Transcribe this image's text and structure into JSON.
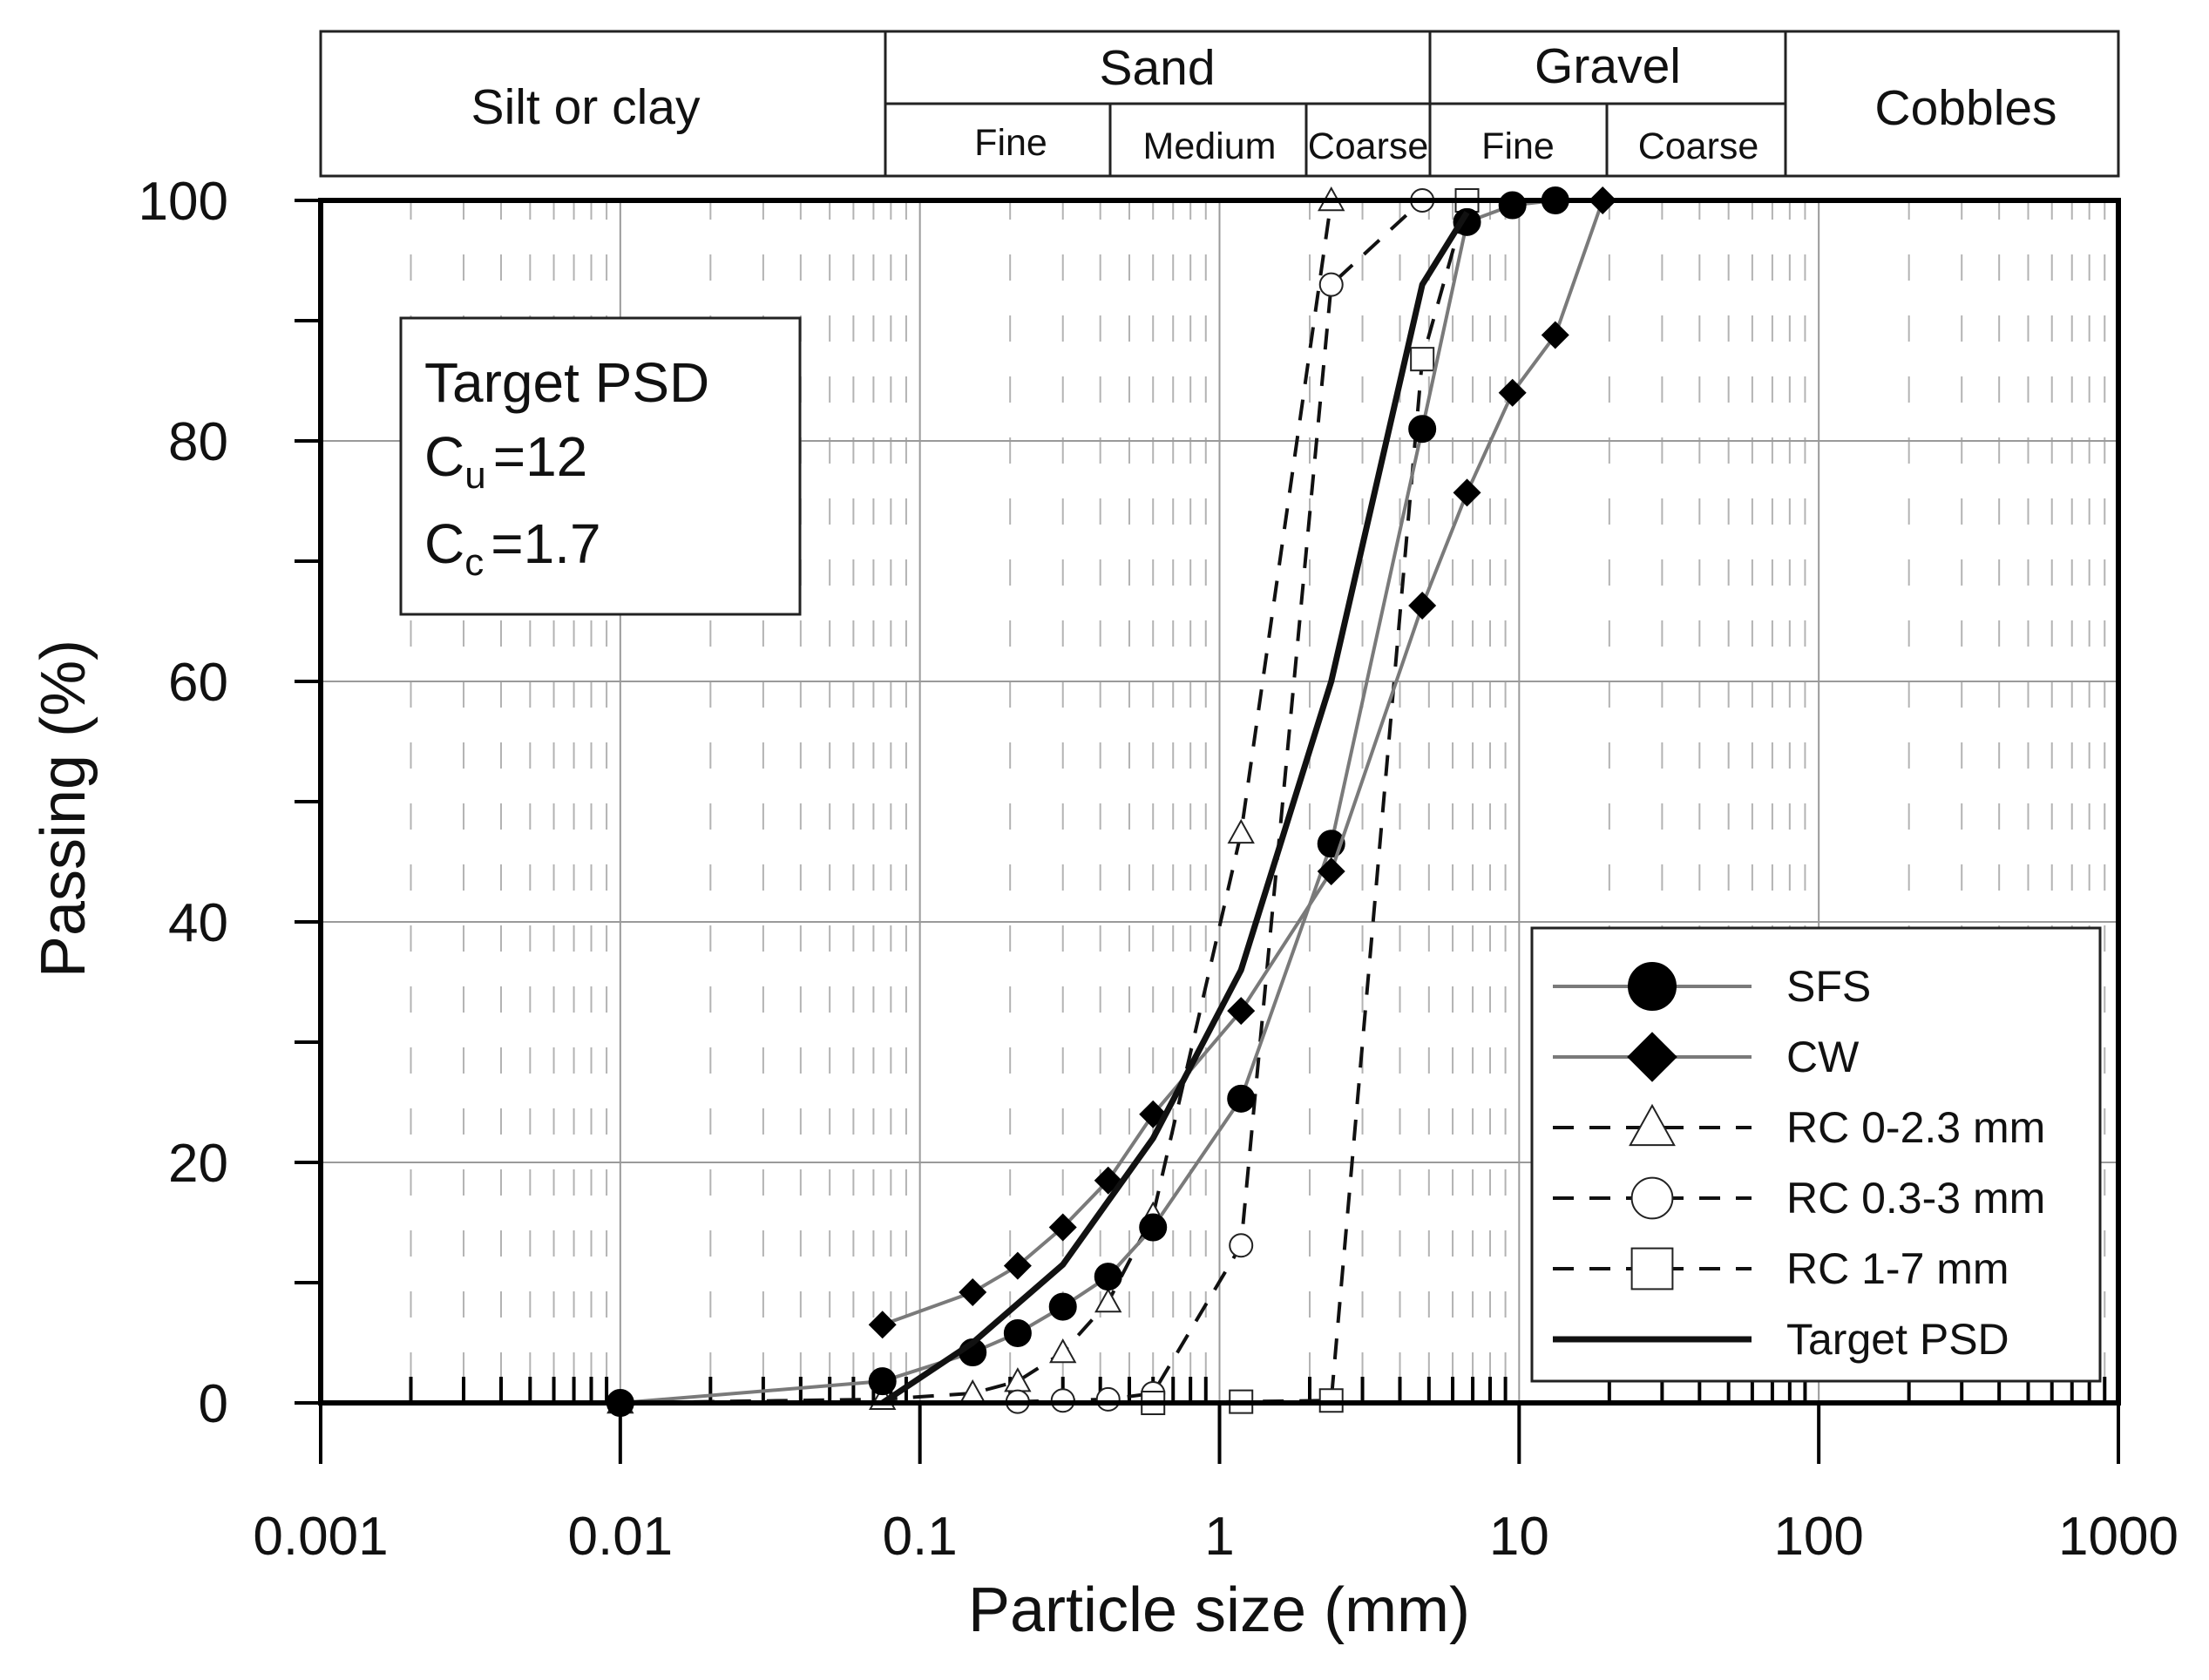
{
  "chart_data": {
    "type": "line",
    "xlabel": "Particle size (mm)",
    "ylabel": "Passing (%)",
    "xscale": "log",
    "xlim": [
      0.001,
      1000
    ],
    "ylim": [
      0,
      100
    ],
    "grid": true,
    "legend_position": "bottom-right",
    "x_tick_labels": [
      "0.001",
      "0.01",
      "0.1",
      "1",
      "10",
      "100",
      "1000"
    ],
    "y_tick_labels": [
      "0",
      "20",
      "40",
      "60",
      "80",
      "100"
    ],
    "classification": {
      "silt": "Silt or clay",
      "sand": "Sand",
      "gravel": "Gravel",
      "cobbles": "Cobbles",
      "sand_fine": "Fine",
      "sand_medium": "Medium",
      "sand_coarse": "Coarse",
      "gravel_fine": "Fine",
      "gravel_coarse": "Coarse"
    },
    "annotation": {
      "title": "Target PSD",
      "cu_base": "C",
      "cu_sub": "u",
      "cu_value": "=12",
      "cc_base": "C",
      "cc_sub": "c",
      "cc_value": "=1.7"
    },
    "series": [
      {
        "name": "SFS",
        "style": "solid",
        "color": "#7a7a7a",
        "marker": "filled-circle",
        "x": [
          0.01,
          0.075,
          0.15,
          0.212,
          0.3,
          0.425,
          0.6,
          1.18,
          2.36,
          4.75,
          6.7,
          9.5,
          13.2
        ],
        "y": [
          0,
          1.8,
          4.2,
          5.8,
          8.0,
          10.5,
          14.6,
          25.3,
          46.5,
          81.0,
          98.2,
          99.6,
          100
        ]
      },
      {
        "name": "CW",
        "style": "solid",
        "color": "#7a7a7a",
        "marker": "filled-diamond",
        "x": [
          0.075,
          0.15,
          0.212,
          0.3,
          0.425,
          0.6,
          1.18,
          2.36,
          4.75,
          6.7,
          9.5,
          13.2,
          19.0
        ],
        "y": [
          6.5,
          9.2,
          11.4,
          14.6,
          18.5,
          24.0,
          32.6,
          44.2,
          66.3,
          75.7,
          84.0,
          88.8,
          100
        ]
      },
      {
        "name": "RC 0-2.3 mm",
        "style": "dashed",
        "color": "#111111",
        "marker": "open-triangle",
        "x": [
          0.01,
          0.075,
          0.15,
          0.212,
          0.3,
          0.425,
          0.6,
          1.18,
          2.36
        ],
        "y": [
          0,
          0.3,
          0.8,
          1.8,
          4.2,
          8.4,
          15.6,
          47.4,
          100
        ]
      },
      {
        "name": "RC 0.3-3 mm",
        "style": "dashed",
        "color": "#111111",
        "marker": "open-circle",
        "x": [
          0.212,
          0.3,
          0.425,
          0.6,
          1.18,
          2.36,
          4.75
        ],
        "y": [
          0.1,
          0.2,
          0.3,
          0.8,
          13.1,
          93.0,
          100
        ]
      },
      {
        "name": "RC 1-7 mm",
        "style": "dashed",
        "color": "#111111",
        "marker": "open-square",
        "x": [
          0.6,
          1.18,
          2.36,
          4.75,
          6.7
        ],
        "y": [
          0,
          0.1,
          0.2,
          86.8,
          100
        ]
      },
      {
        "name": "Target PSD",
        "style": "solid-thick",
        "color": "#111111",
        "marker": "none",
        "x": [
          0.075,
          0.15,
          0.3,
          0.6,
          1.18,
          2.36,
          4.75,
          6.7
        ],
        "y": [
          0,
          5,
          11.5,
          22,
          36,
          60,
          93,
          99
        ]
      }
    ]
  }
}
